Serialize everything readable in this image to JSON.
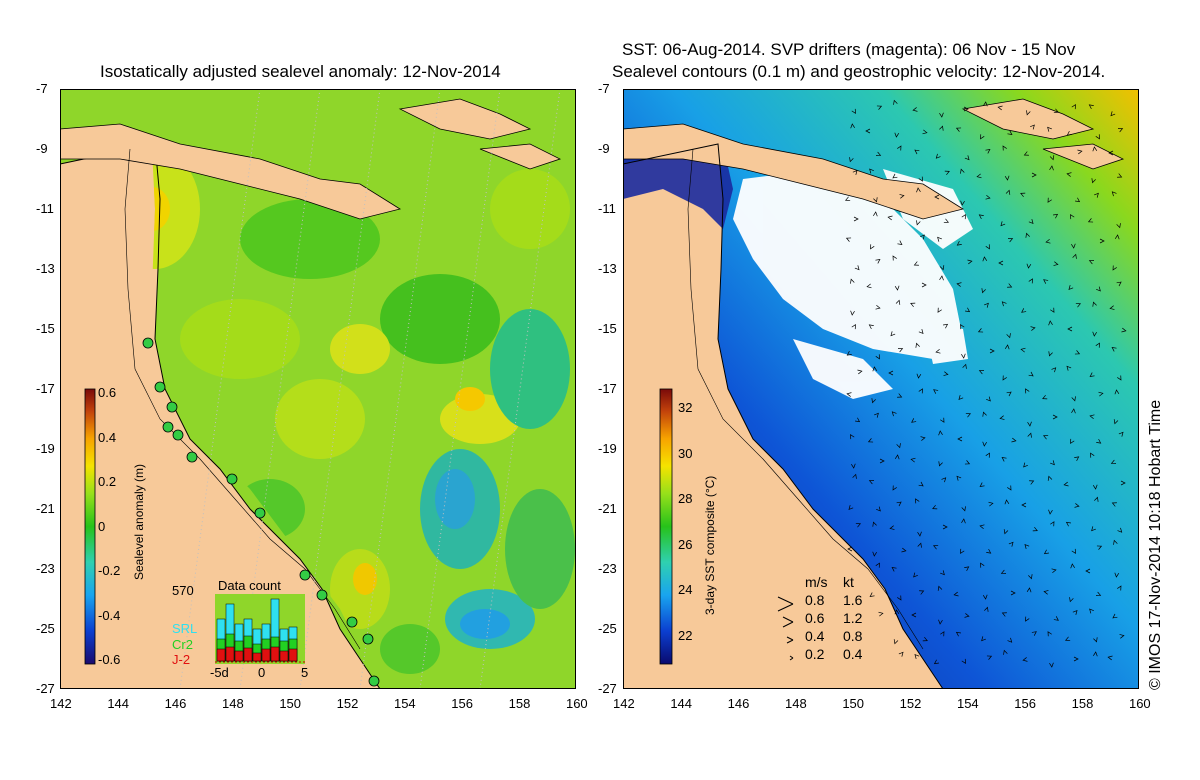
{
  "left_panel": {
    "title": "Isostatically adjusted sealevel anomaly: 12-Nov-2014",
    "colorbar": {
      "label": "Sealevel anomaly (m)",
      "ticks": [
        "0.6",
        "0.4",
        "0.2",
        "0",
        "-0.2",
        "-0.4",
        "-0.6"
      ],
      "colors": [
        "#1a0a6e",
        "#0b3fd0",
        "#19a4ef",
        "#2fd0b0",
        "#27c21a",
        "#97e01a",
        "#f5e300",
        "#f7a300",
        "#c2420b",
        "#7a0a0a"
      ]
    },
    "data_count": {
      "title": "Data count",
      "max_label": "570",
      "series": [
        "SRL",
        "Cr2",
        "J-2"
      ],
      "series_colors": [
        "#2fe0f0",
        "#22d022",
        "#e01010"
      ],
      "x_ticks": [
        "-5d",
        "0",
        "5"
      ]
    }
  },
  "right_panel": {
    "title_line1": "SST: 06-Aug-2014. SVP drifters (magenta): 06 Nov - 15 Nov",
    "title_line2": "Sealevel contours (0.1 m) and geostrophic velocity: 12-Nov-2014.",
    "colorbar": {
      "label": "3-day SST composite (°C)",
      "ticks": [
        "32",
        "30",
        "28",
        "26",
        "24",
        "22"
      ],
      "colors": [
        "#0a0a6e",
        "#0b3fd0",
        "#19a4ef",
        "#2fd0b0",
        "#27c21a",
        "#97e01a",
        "#f5e300",
        "#f7a300",
        "#c2420b",
        "#7a0a0a"
      ]
    },
    "velocity_legend": {
      "header_ms": "m/s",
      "header_kt": "kt",
      "rows": [
        {
          "ms": "0.8",
          "kt": "1.6"
        },
        {
          "ms": "0.6",
          "kt": "1.2"
        },
        {
          "ms": "0.4",
          "kt": "0.8"
        },
        {
          "ms": "0.2",
          "kt": "0.4"
        }
      ]
    }
  },
  "axes": {
    "lat_ticks": [
      "-7",
      "-9",
      "-11",
      "-13",
      "-15",
      "-17",
      "-19",
      "-21",
      "-23",
      "-25",
      "-27"
    ],
    "lon_ticks": [
      "142",
      "144",
      "146",
      "148",
      "150",
      "152",
      "154",
      "156",
      "158",
      "160"
    ]
  },
  "credit": "© IMOS 17-Nov-2014 10:18 Hobart Time",
  "colors": {
    "land": "#f7c999",
    "cloud": "#ffffff"
  }
}
